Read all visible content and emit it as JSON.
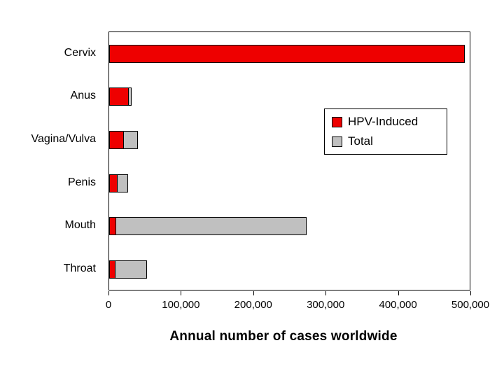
{
  "chart_data": {
    "type": "bar",
    "orientation": "horizontal",
    "title": "",
    "xlabel": "Annual number of cases worldwide",
    "ylabel": "",
    "categories": [
      "Cervix",
      "Anus",
      "Vagina/Vulva",
      "Penis",
      "Mouth",
      "Throat"
    ],
    "series": [
      {
        "name": "HPV-Induced",
        "color": "#EE0000",
        "values": [
          493000,
          27000,
          20000,
          12000,
          10000,
          9000
        ]
      },
      {
        "name": "Total",
        "color": "#C0C0C0",
        "values": [
          493000,
          31000,
          40000,
          26000,
          274000,
          52000
        ]
      }
    ],
    "xlim": [
      0,
      500000
    ],
    "x_ticks": [
      0,
      100000,
      200000,
      300000,
      400000,
      500000
    ],
    "x_tick_labels": [
      "0",
      "100,000",
      "200,000",
      "300,000",
      "400,000",
      "500,000"
    ],
    "grid": false,
    "legend_position": "inside-middle-right"
  },
  "colors": {
    "hpv_induced": "#EE0000",
    "total": "#C0C0C0",
    "axis": "#000000",
    "background": "#FFFFFF"
  }
}
